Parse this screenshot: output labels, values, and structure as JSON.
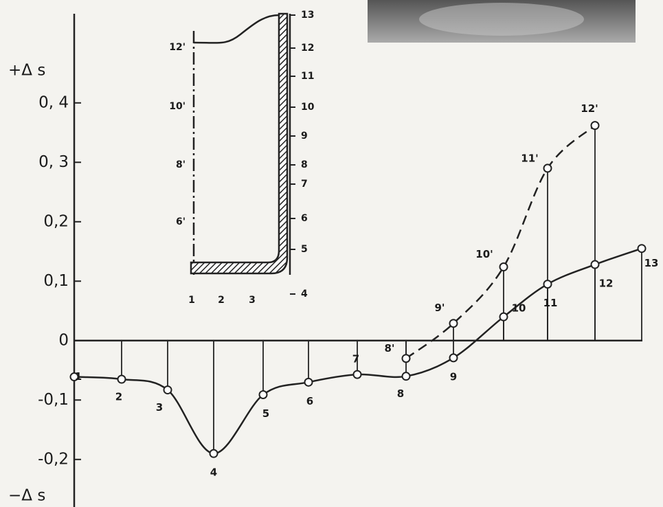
{
  "chart_data": {
    "type": "line",
    "y_label_top": "+Δ s",
    "y_label_bottom": "−Δ s",
    "categories": [
      "1",
      "2",
      "3",
      "4",
      "5",
      "6",
      "7",
      "8",
      "9",
      "10",
      "11",
      "12",
      "13"
    ],
    "series": [
      {
        "color": "#222",
        "dash": false,
        "values": [
          -0.061,
          -0.065,
          -0.083,
          -0.19,
          -0.091,
          -0.07,
          -0.057,
          -0.06,
          -0.029,
          0.04,
          0.095,
          0.128,
          0.155
        ]
      },
      {
        "color": "#222",
        "dash": true,
        "labels": [
          null,
          null,
          null,
          null,
          null,
          null,
          null,
          "8'",
          "9'",
          "10'",
          "11'",
          "12'",
          null
        ],
        "values": [
          null,
          null,
          null,
          null,
          null,
          null,
          null,
          -0.03,
          0.029,
          0.124,
          0.29,
          0.362,
          null
        ]
      }
    ],
    "ylim": [
      -0.28,
      0.55
    ],
    "yticks": [
      {
        "value": 0.4,
        "label": "0, 4"
      },
      {
        "value": 0.3,
        "label": "0, 3"
      },
      {
        "value": 0.2,
        "label": "0,2"
      },
      {
        "value": 0.1,
        "label": "0,1"
      },
      0,
      {
        "value": -0.1,
        "label": "-0,1"
      },
      {
        "value": -0.2,
        "label": "-0,2"
      }
    ]
  },
  "inset": {
    "bottom_labels": [
      "1",
      "2",
      "3"
    ],
    "right_labels": [
      "4",
      "5",
      "6",
      "7",
      "8",
      "9",
      "10",
      "11",
      "12",
      "13"
    ],
    "left_labels": [
      "6'",
      "8'",
      "10'",
      "12'"
    ]
  }
}
